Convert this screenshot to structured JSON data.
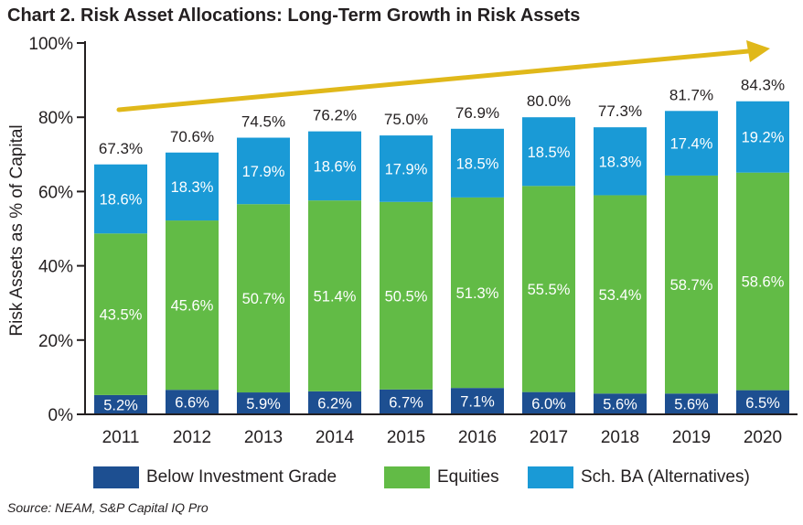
{
  "title": "Chart 2. Risk Asset Allocations: Long-Term Growth in Risk Assets",
  "source": "Source: NEAM, S&P Capital IQ Pro",
  "colors": {
    "big": "#1d4f91",
    "eq": "#62bb46",
    "ba": "#1a9ad6",
    "arrow": "#e0b81a",
    "text": "#231f20"
  },
  "legend": [
    {
      "key": "big",
      "label": "Below Investment Grade"
    },
    {
      "key": "eq",
      "label": "Equities"
    },
    {
      "key": "ba",
      "label": "Sch. BA (Alternatives)"
    }
  ],
  "chart_data": {
    "type": "bar",
    "stacked": true,
    "title": "Chart 2. Risk Asset Allocations: Long-Term Growth in Risk Assets",
    "xlabel": "",
    "ylabel": "Risk Assets as % of Capital",
    "ylim": [
      0,
      100
    ],
    "yticks": [
      0,
      20,
      40,
      60,
      80,
      100
    ],
    "ytick_labels": [
      "0%",
      "20%",
      "40%",
      "60%",
      "80%",
      "100%"
    ],
    "categories": [
      "2011",
      "2012",
      "2013",
      "2014",
      "2015",
      "2016",
      "2017",
      "2018",
      "2019",
      "2020"
    ],
    "series": [
      {
        "key": "big",
        "name": "Below Investment Grade",
        "values": [
          5.2,
          6.6,
          5.9,
          6.2,
          6.7,
          7.1,
          6.0,
          5.6,
          5.6,
          6.5
        ],
        "labels": [
          "5.2%",
          "6.6%",
          "5.9%",
          "6.2%",
          "6.7%",
          "7.1%",
          "6.0%",
          "5.6%",
          "5.6%",
          "6.5%"
        ]
      },
      {
        "key": "eq",
        "name": "Equities",
        "values": [
          43.5,
          45.6,
          50.7,
          51.4,
          50.5,
          51.3,
          55.5,
          53.4,
          58.7,
          58.6
        ],
        "labels": [
          "43.5%",
          "45.6%",
          "50.7%",
          "51.4%",
          "50.5%",
          "51.3%",
          "55.5%",
          "53.4%",
          "58.7%",
          "58.6%"
        ]
      },
      {
        "key": "ba",
        "name": "Sch. BA (Alternatives)",
        "values": [
          18.6,
          18.3,
          17.9,
          18.6,
          17.9,
          18.5,
          18.5,
          18.3,
          17.4,
          19.2
        ],
        "labels": [
          "18.6%",
          "18.3%",
          "17.9%",
          "18.6%",
          "17.9%",
          "18.5%",
          "18.5%",
          "18.3%",
          "17.4%",
          "19.2%"
        ]
      }
    ],
    "totals": [
      67.3,
      70.6,
      74.5,
      76.2,
      75.0,
      76.9,
      80.0,
      77.3,
      81.7,
      84.3
    ],
    "total_labels": [
      "67.3%",
      "70.6%",
      "74.5%",
      "76.2%",
      "75.0%",
      "76.9%",
      "80.0%",
      "77.3%",
      "81.7%",
      "84.3%"
    ],
    "trend_arrow": "upward trend arrow across bars",
    "grid": false
  }
}
